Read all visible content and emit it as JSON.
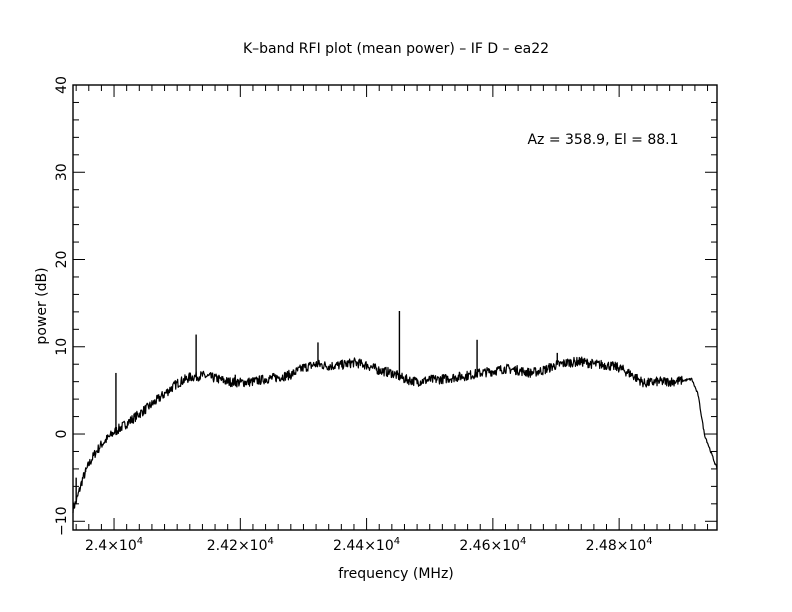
{
  "chart_data": {
    "type": "line",
    "title": "K–band RFI plot (mean power) – IF D – ea22",
    "xlabel": "frequency (MHz)",
    "ylabel": "power (dB)",
    "annotation": "Az = 358.9, El = 88.1",
    "xlim": [
      23935,
      24955
    ],
    "ylim": [
      -11,
      40
    ],
    "grid": false,
    "legend": "none",
    "line_color": "#000000",
    "x_ticks": [
      {
        "value": 24000,
        "mantissa": "2.4",
        "exponent": "4"
      },
      {
        "value": 24200,
        "mantissa": "2.42",
        "exponent": "4"
      },
      {
        "value": 24400,
        "mantissa": "2.44",
        "exponent": "4"
      },
      {
        "value": 24600,
        "mantissa": "2.46",
        "exponent": "4"
      },
      {
        "value": 24800,
        "mantissa": "2.48",
        "exponent": "4"
      }
    ],
    "y_ticks": [
      {
        "value": -10,
        "label": "−10"
      },
      {
        "value": 0,
        "label": "0"
      },
      {
        "value": 10,
        "label": "10"
      },
      {
        "value": 20,
        "label": "20"
      },
      {
        "value": 30,
        "label": "30"
      },
      {
        "value": 40,
        "label": "40"
      }
    ],
    "series": [
      {
        "x": [
          23935,
          23940,
          23945,
          23950,
          23960,
          23970,
          23980,
          23990,
          24000,
          24020,
          24040,
          24060,
          24080,
          24100,
          24120,
          24130,
          24140,
          24160,
          24180,
          24200,
          24220,
          24240,
          24260,
          24280,
          24300,
          24320,
          24340,
          24360,
          24380,
          24400,
          24420,
          24440,
          24460,
          24480,
          24500,
          24520,
          24540,
          24560,
          24580,
          24600,
          24620,
          24640,
          24660,
          24680,
          24700,
          24720,
          24740,
          24760,
          24780,
          24800,
          24820,
          24840,
          24860,
          24880,
          24900,
          24915,
          24925,
          24935,
          24945,
          24955
        ],
        "y": [
          -8.5,
          -7.8,
          -6.5,
          -5.2,
          -3.5,
          -2.2,
          -1.2,
          -0.5,
          0.2,
          1.2,
          2.3,
          3.4,
          4.6,
          5.8,
          6.5,
          6.6,
          6.7,
          6.4,
          6.0,
          5.9,
          6.0,
          6.3,
          6.5,
          6.8,
          7.6,
          8.0,
          7.8,
          7.9,
          8.2,
          7.9,
          7.3,
          7.0,
          6.3,
          6.0,
          6.2,
          6.3,
          6.5,
          6.7,
          7.0,
          7.2,
          7.5,
          7.3,
          7.0,
          7.3,
          7.9,
          8.2,
          8.3,
          8.0,
          7.9,
          7.6,
          6.8,
          5.8,
          6.0,
          6.0,
          6.1,
          6.3,
          4.5,
          0.0,
          -2.0,
          -4.0
        ]
      }
    ],
    "spikes": [
      {
        "x": 23940,
        "y": -5.0
      },
      {
        "x": 23955,
        "y": -4.0
      },
      {
        "x": 23975,
        "y": -1.5
      },
      {
        "x": 24003,
        "y": 7.0
      },
      {
        "x": 24130,
        "y": 11.4
      },
      {
        "x": 24192,
        "y": 6.8
      },
      {
        "x": 24323,
        "y": 10.5
      },
      {
        "x": 24452,
        "y": 14.1
      },
      {
        "x": 24575,
        "y": 10.8
      },
      {
        "x": 24702,
        "y": 9.3
      }
    ]
  }
}
